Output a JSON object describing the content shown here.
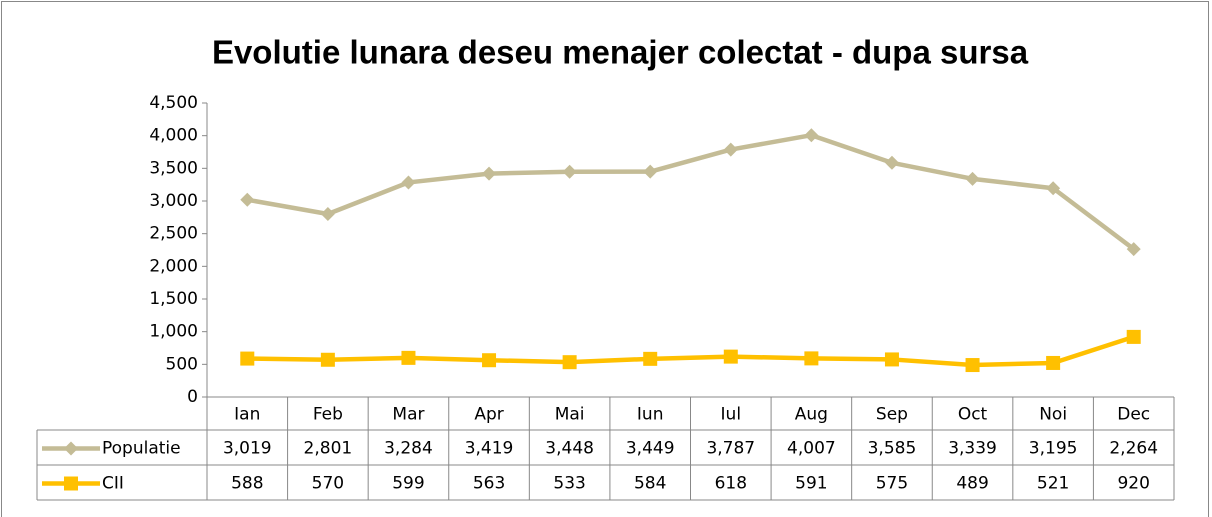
{
  "chart_data": {
    "type": "line",
    "title": "Evolutie lunara deseu menajer colectat - dupa sursa",
    "categories": [
      "Ian",
      "Feb",
      "Mar",
      "Apr",
      "Mai",
      "Iun",
      "Iul",
      "Aug",
      "Sep",
      "Oct",
      "Noi",
      "Dec"
    ],
    "series": [
      {
        "name": "Populatie",
        "color": "#c4bc96",
        "marker": "diamond",
        "values": [
          3019,
          2801,
          3284,
          3419,
          3448,
          3449,
          3787,
          4007,
          3585,
          3339,
          3195,
          2264
        ],
        "value_labels": [
          "3,019",
          "2,801",
          "3,284",
          "3,419",
          "3,448",
          "3,449",
          "3,787",
          "4,007",
          "3,585",
          "3,339",
          "3,195",
          "2,264"
        ]
      },
      {
        "name": "CII",
        "color": "#ffc000",
        "marker": "square",
        "values": [
          588,
          570,
          599,
          563,
          533,
          584,
          618,
          591,
          575,
          489,
          521,
          920
        ]
      }
    ],
    "ylim": [
      0,
      4500
    ],
    "yticks": [
      0,
      500,
      {
        "value": 1000,
        "label": "1,000"
      },
      {
        "value": 1500,
        "label": "1,500"
      },
      {
        "value": 2000,
        "label": "2,000"
      },
      {
        "value": 2500,
        "label": "2,500"
      },
      {
        "value": 3000,
        "label": "3,000"
      },
      {
        "value": 3500,
        "label": "3,500"
      },
      {
        "value": 4000,
        "label": "4,000"
      },
      {
        "value": 4500,
        "label": "4,500"
      }
    ],
    "grid": false
  }
}
